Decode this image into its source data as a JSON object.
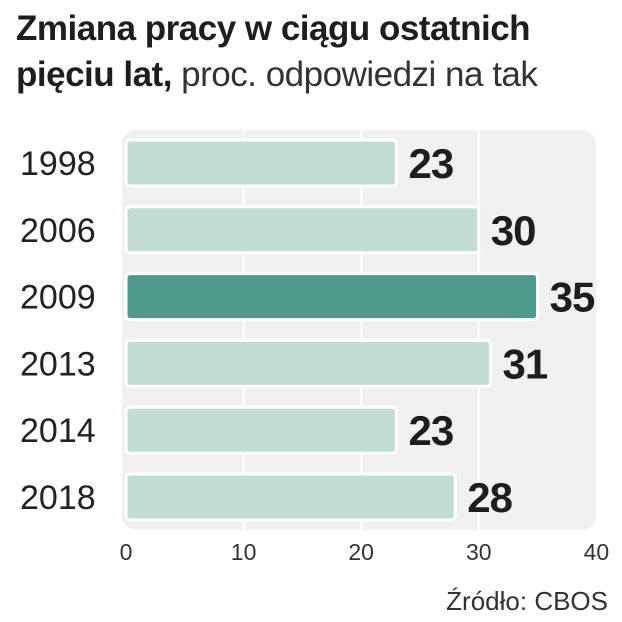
{
  "title_bold": "Zmiana pracy w ciągu ostatnich pięciu lat,",
  "title_light": "proc. odpowiedzi na tak",
  "source": "Źródło: CBOS",
  "chart_data": {
    "type": "bar",
    "orientation": "horizontal",
    "title": "Zmiana pracy w ciągu ostatnich pięciu lat, proc. odpowiedzi na tak",
    "categories": [
      "1998",
      "2006",
      "2009",
      "2013",
      "2014",
      "2018"
    ],
    "values": [
      23,
      30,
      35,
      31,
      23,
      28
    ],
    "highlight": "2009",
    "xlim": [
      0,
      40
    ],
    "xticks": [
      0,
      10,
      20,
      30,
      40
    ],
    "grid": true,
    "colors": {
      "bar": "#c4ddd4",
      "highlight": "#4e9b8c",
      "background": "#f0f0f0",
      "gridline": "#ffffff"
    }
  }
}
